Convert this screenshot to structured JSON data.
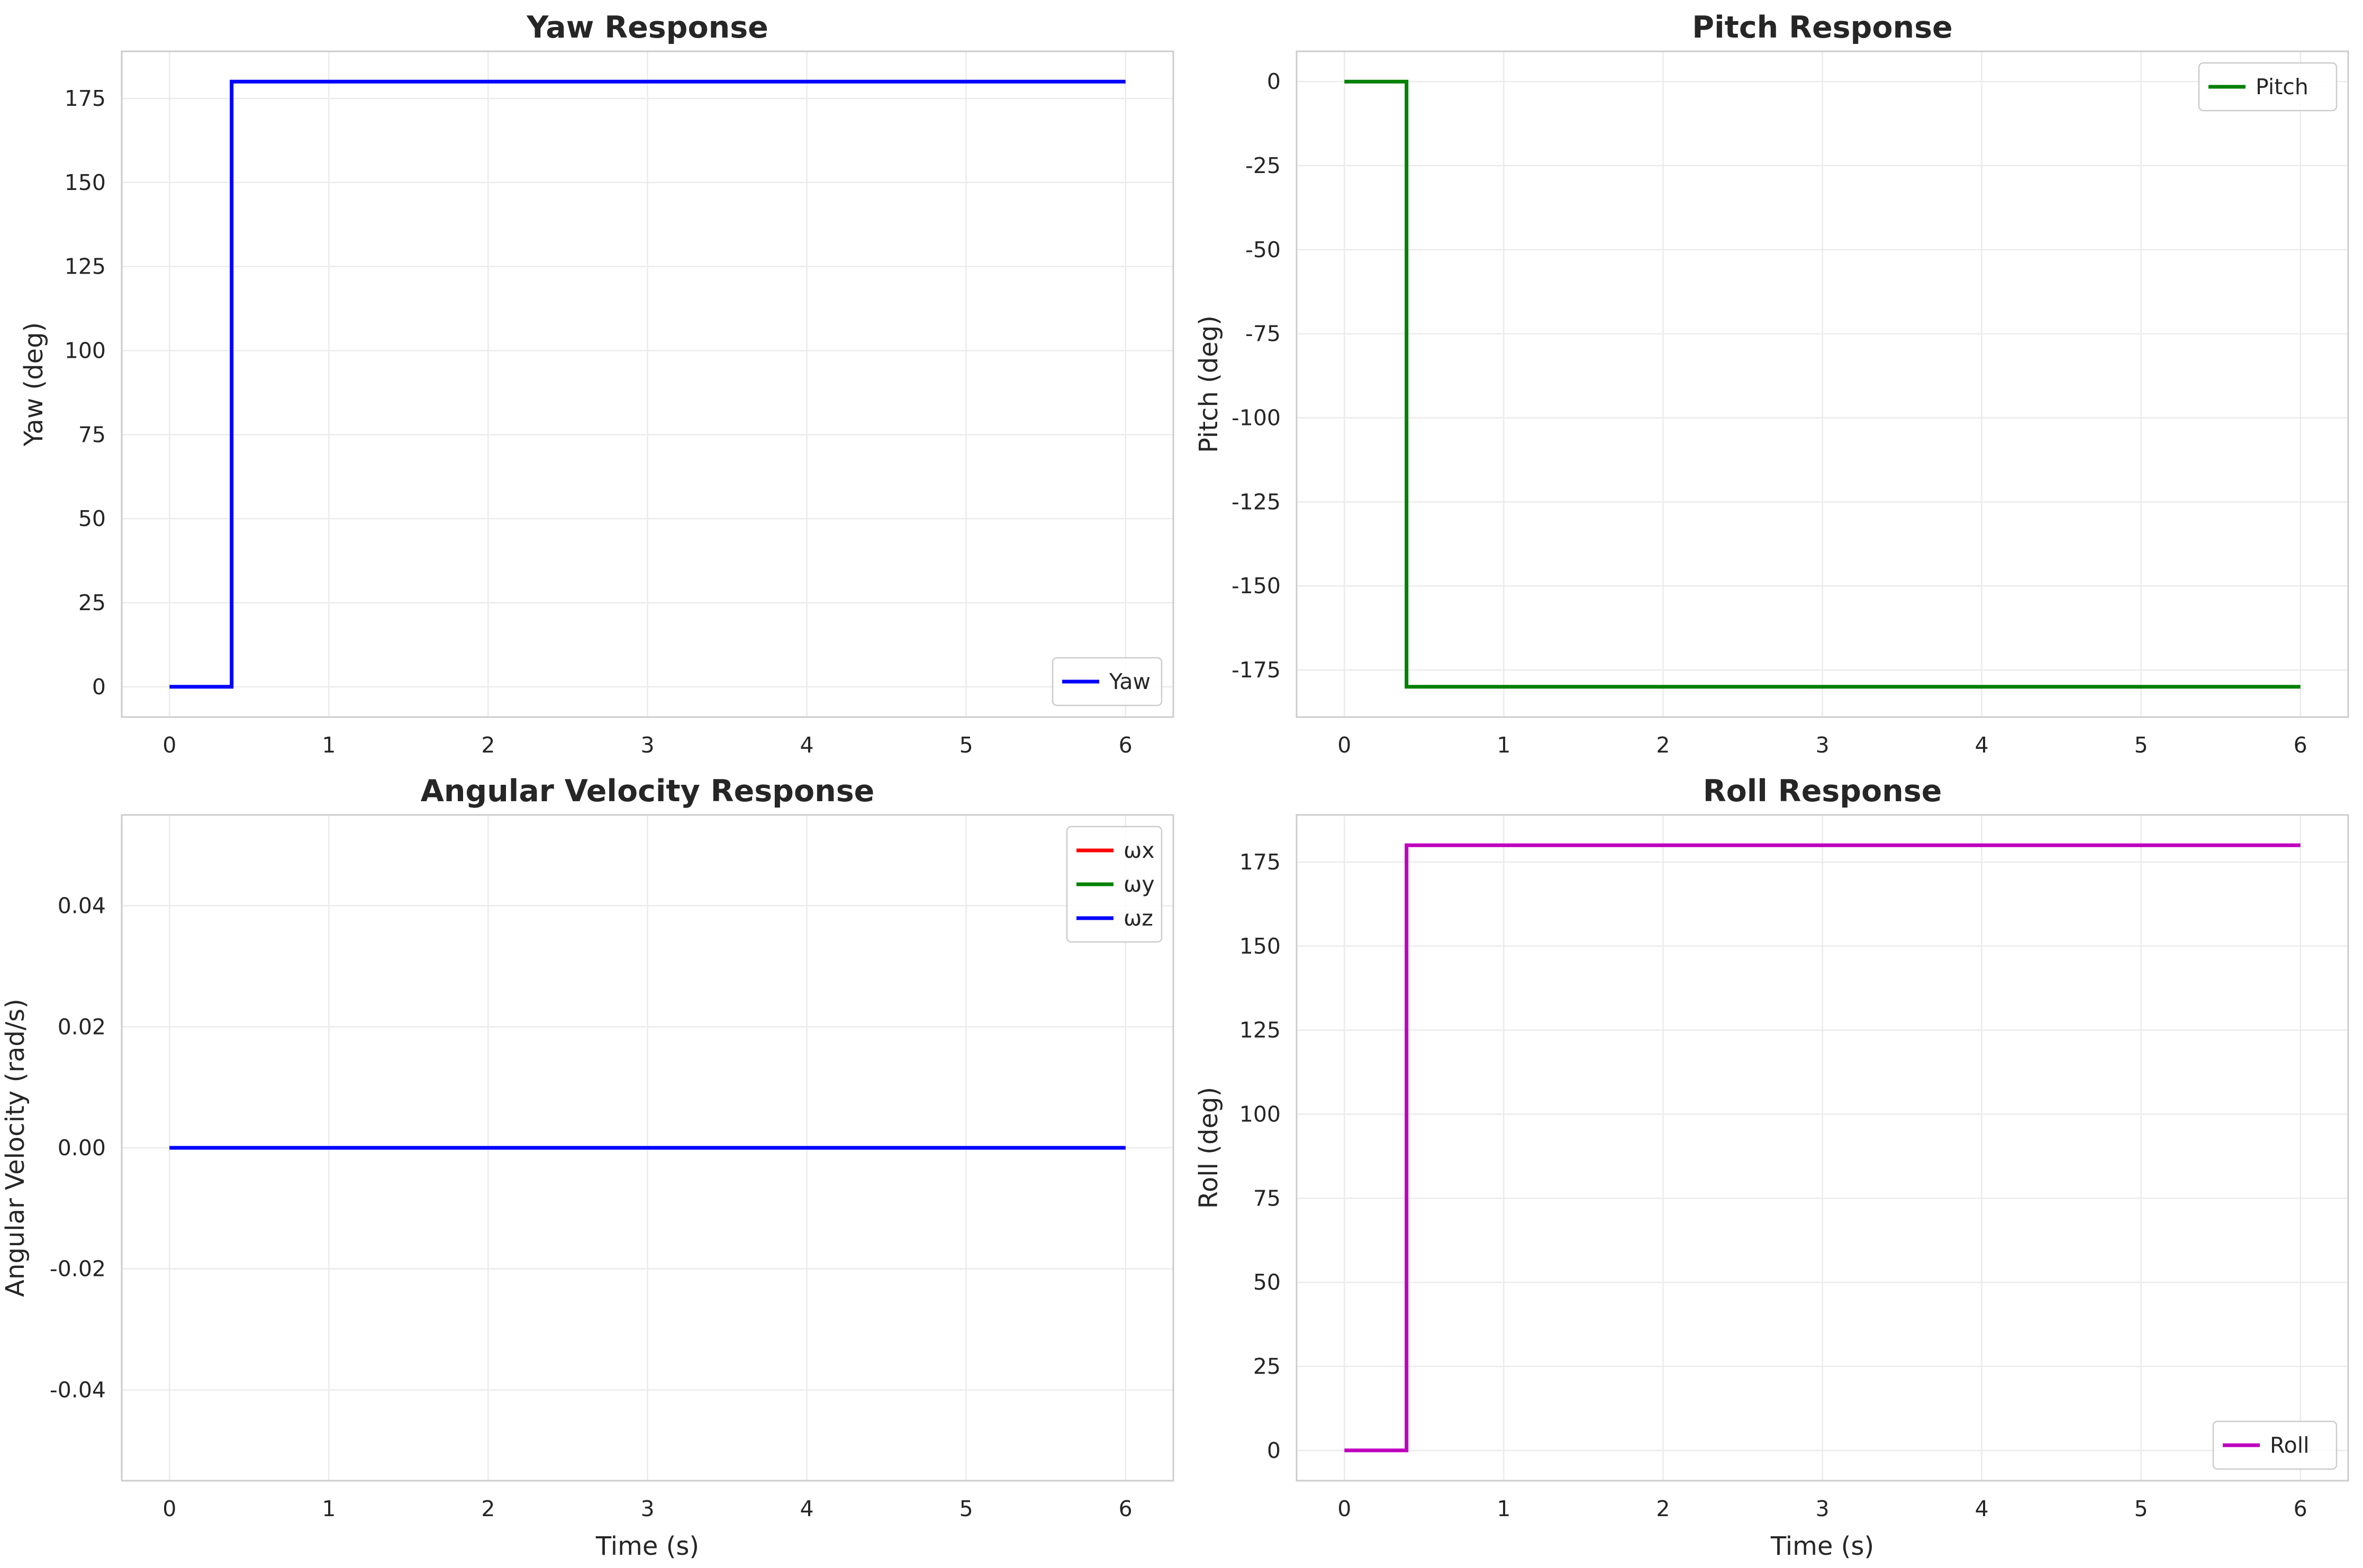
{
  "chart_data": [
    {
      "type": "line",
      "title": "Yaw Response",
      "xlabel": "",
      "ylabel": "Yaw (deg)",
      "xlim": [
        -0.3,
        6.3
      ],
      "ylim": [
        -9,
        189
      ],
      "xticks": [
        0,
        1,
        2,
        3,
        4,
        5,
        6
      ],
      "yticks": [
        0,
        25,
        50,
        75,
        100,
        125,
        150,
        175
      ],
      "grid": true,
      "legend_position": "lower-right",
      "series": [
        {
          "name": "Yaw",
          "color": "#0000ff",
          "step": true,
          "x": [
            0,
            0.39,
            0.39,
            6
          ],
          "y": [
            0,
            0,
            180,
            180
          ]
        }
      ]
    },
    {
      "type": "line",
      "title": "Pitch Response",
      "xlabel": "",
      "ylabel": "Pitch (deg)",
      "xlim": [
        -0.3,
        6.3
      ],
      "ylim": [
        -189,
        9
      ],
      "xticks": [
        0,
        1,
        2,
        3,
        4,
        5,
        6
      ],
      "yticks": [
        0,
        -25,
        -50,
        -75,
        -100,
        -125,
        -150,
        -175
      ],
      "grid": true,
      "legend_position": "upper-right",
      "series": [
        {
          "name": "Pitch",
          "color": "#008000",
          "step": true,
          "x": [
            0,
            0.39,
            0.39,
            6
          ],
          "y": [
            0,
            0,
            -180,
            -180
          ]
        }
      ]
    },
    {
      "type": "line",
      "title": "Angular Velocity Response",
      "xlabel": "Time (s)",
      "ylabel": "Angular Velocity (rad/s)",
      "xlim": [
        -0.3,
        6.3
      ],
      "ylim": [
        -0.055,
        0.055
      ],
      "xticks": [
        0,
        1,
        2,
        3,
        4,
        5,
        6
      ],
      "yticks": [
        0.04,
        0.02,
        0.0,
        -0.02,
        -0.04
      ],
      "ytick_labels": [
        "0.04",
        "0.02",
        "0.00",
        "-0.02",
        "-0.04"
      ],
      "grid": true,
      "legend_position": "upper-right",
      "series": [
        {
          "name": "ωx",
          "color": "#ff0000",
          "x": [
            0,
            6
          ],
          "y": [
            0,
            0
          ]
        },
        {
          "name": "ωy",
          "color": "#008000",
          "x": [
            0,
            6
          ],
          "y": [
            0,
            0
          ]
        },
        {
          "name": "ωz",
          "color": "#0000ff",
          "x": [
            0,
            6
          ],
          "y": [
            0,
            0
          ]
        }
      ]
    },
    {
      "type": "line",
      "title": "Roll Response",
      "xlabel": "Time (s)",
      "ylabel": "Roll (deg)",
      "xlim": [
        -0.3,
        6.3
      ],
      "ylim": [
        -9,
        189
      ],
      "xticks": [
        0,
        1,
        2,
        3,
        4,
        5,
        6
      ],
      "yticks": [
        0,
        25,
        50,
        75,
        100,
        125,
        150,
        175
      ],
      "grid": true,
      "legend_position": "lower-right",
      "series": [
        {
          "name": "Roll",
          "color": "#bf00bf",
          "step": true,
          "x": [
            0,
            0.39,
            0.39,
            6
          ],
          "y": [
            0,
            0,
            180,
            180
          ]
        }
      ]
    }
  ]
}
